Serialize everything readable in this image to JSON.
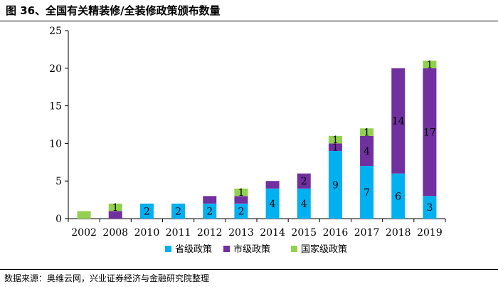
{
  "title": "图 36、全国有关精装修/全装修政策颁布数量",
  "source": "数据来源：奥维云网，兴业证券经济与金融研究院整理",
  "chart_data": {
    "type": "bar",
    "stacked": true,
    "categories": [
      "2002",
      "2008",
      "2010",
      "2011",
      "2012",
      "2013",
      "2014",
      "2015",
      "2016",
      "2017",
      "2018",
      "2019"
    ],
    "series": [
      {
        "name": "省级政策",
        "color": "#00B0F0",
        "values": [
          0,
          0,
          2,
          2,
          2,
          2,
          4,
          4,
          9,
          7,
          6,
          3
        ]
      },
      {
        "name": "市级政策",
        "color": "#7030A0",
        "values": [
          0,
          1,
          0,
          0,
          1,
          1,
          1,
          2,
          1,
          4,
          14,
          17
        ]
      },
      {
        "name": "国家级政策",
        "color": "#92D050",
        "values": [
          1,
          1,
          0,
          0,
          0,
          1,
          0,
          0,
          1,
          1,
          0,
          1
        ]
      }
    ],
    "data_labels": [
      [
        null,
        null,
        null
      ],
      [
        null,
        null,
        "1"
      ],
      [
        "2",
        null,
        null
      ],
      [
        "2",
        null,
        null
      ],
      [
        "2",
        null,
        null
      ],
      [
        "2",
        null,
        "1"
      ],
      [
        "4",
        null,
        null
      ],
      [
        "4",
        "2",
        null
      ],
      [
        "9",
        "1",
        "1"
      ],
      [
        "7",
        "4",
        "1"
      ],
      [
        "6",
        "14",
        null
      ],
      [
        "3",
        "17",
        "1"
      ]
    ],
    "ylim": [
      0,
      25
    ],
    "yticks": [
      0,
      5,
      10,
      15,
      20,
      25
    ],
    "legend_position": "bottom",
    "grid": false
  }
}
